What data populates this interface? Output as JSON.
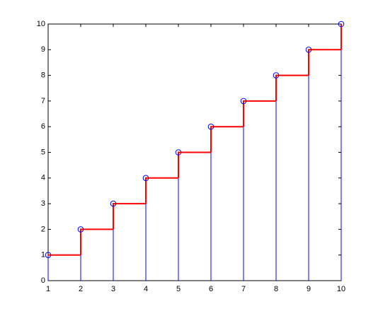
{
  "chart_data": {
    "type": "stem",
    "x": [
      1,
      2,
      3,
      4,
      5,
      6,
      7,
      8,
      9,
      10
    ],
    "series": [
      {
        "type": "stem",
        "color": "#0000ff",
        "marker": "circle",
        "values": [
          1,
          2,
          3,
          4,
          5,
          6,
          7,
          8,
          9,
          10
        ]
      },
      {
        "type": "stairs",
        "color": "#ff0000",
        "values": [
          1,
          2,
          3,
          4,
          5,
          6,
          7,
          8,
          9,
          10
        ]
      }
    ],
    "xlim": [
      1,
      10
    ],
    "xticks": [
      1,
      2,
      3,
      4,
      5,
      6,
      7,
      8,
      9,
      10
    ],
    "ylim": [
      0,
      10
    ],
    "yticks": [
      0,
      1,
      2,
      3,
      4,
      5,
      6,
      7,
      8,
      9,
      10
    ],
    "grid": false
  }
}
